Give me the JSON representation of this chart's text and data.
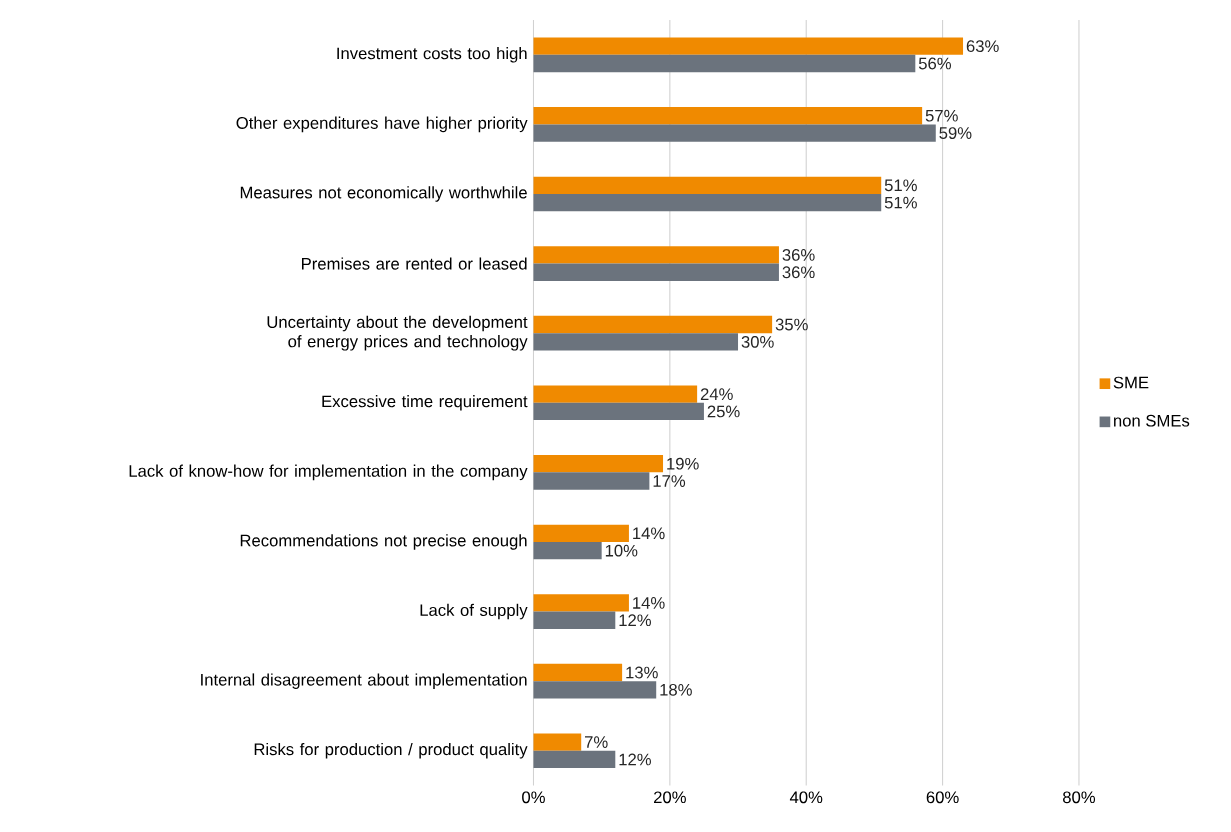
{
  "chart_data": {
    "type": "bar",
    "orientation": "horizontal",
    "categories": [
      "Investment costs too high",
      "Other expenditures have higher priority",
      "Measures not economically worthwhile",
      "Premises are rented or leased",
      "Uncertainty about the development of energy prices and technology",
      "Excessive time requirement",
      "Lack of know-how for implementation in the company",
      "Recommendations not precise enough",
      "Lack of supply",
      "Internal disagreement about implementation",
      "Risks for production / product quality"
    ],
    "series": [
      {
        "name": "SME",
        "color": "#f08a00",
        "values": [
          63,
          57,
          51,
          36,
          35,
          24,
          19,
          14,
          14,
          13,
          7
        ],
        "value_labels": [
          "63%",
          "57%",
          "51%",
          "36%",
          "35%",
          "24%",
          "19%",
          "14%",
          "14%",
          "13%",
          "7%"
        ]
      },
      {
        "name": "non SMEs",
        "color": "#6b737d",
        "values": [
          56,
          59,
          51,
          36,
          30,
          25,
          17,
          10,
          12,
          18,
          12
        ],
        "value_labels": [
          "56%",
          "59%",
          "51%",
          "36%",
          "30%",
          "25%",
          "17%",
          "10%",
          "12%",
          "18%",
          "12%"
        ]
      }
    ],
    "xlim": [
      0,
      80
    ],
    "xticks": [
      {
        "value": 0,
        "label": "0%"
      },
      {
        "value": 20,
        "label": "20%"
      },
      {
        "value": 40,
        "label": "40%"
      },
      {
        "value": 60,
        "label": "60%"
      },
      {
        "value": 80,
        "label": "80%"
      }
    ],
    "grid": "x",
    "legend": "right"
  }
}
